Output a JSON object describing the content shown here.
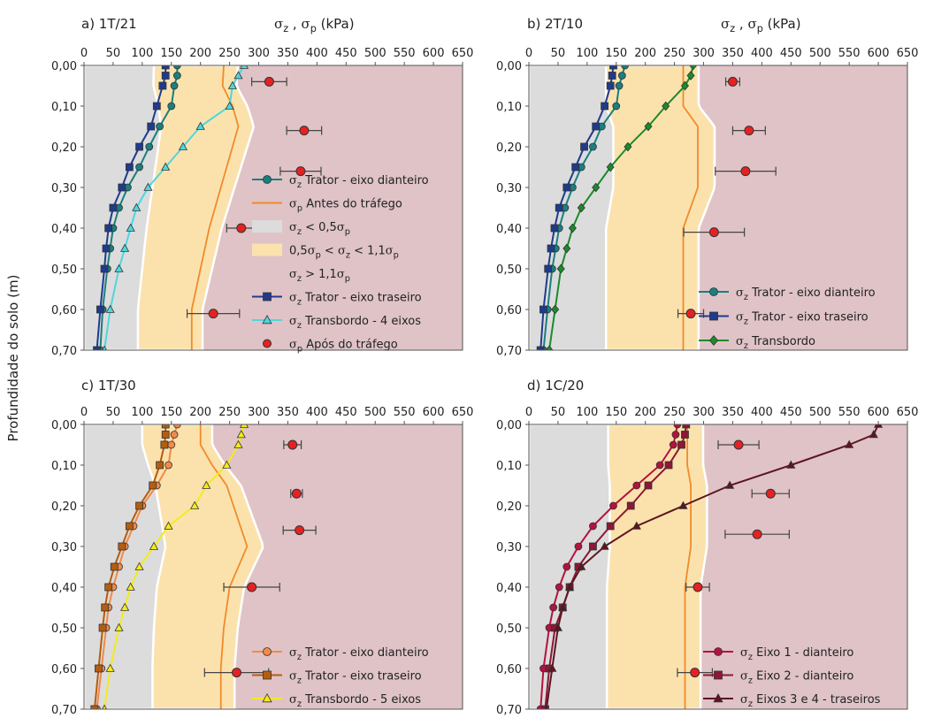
{
  "y_axis_label": "Profundidade do solo (m)",
  "x_axis_label": "σz , σp (kPa)",
  "x_ticks": [
    "0",
    "50",
    "100",
    "150",
    "200",
    "250",
    "300",
    "350",
    "400",
    "450",
    "500",
    "550",
    "600",
    "650"
  ],
  "y_ticks": [
    "0,00",
    "0,10",
    "0,20",
    "0,30",
    "0,40",
    "0,50",
    "0,60",
    "0,70"
  ],
  "colors": {
    "zone_low": "#dcdcdc",
    "zone_mid": "#fbe2ad",
    "zone_high": "#dfc3c7",
    "zone_edge": "#ffffff",
    "sigma_p_line": "#f28a2a",
    "after_traffic_marker": "#e52121"
  },
  "chart_data": [
    {
      "type": "line",
      "panel_title": "a) 1T/21",
      "xlim": [
        0,
        650
      ],
      "ylim": [
        0,
        0.7
      ],
      "y_reversed": true,
      "show_x_label": true,
      "sigma_p_before": {
        "name": "Antes do tráfego",
        "depth": [
          0,
          0.05,
          0.1,
          0.15,
          0.3,
          0.4,
          0.5,
          0.6,
          0.7
        ],
        "value": [
          240,
          238,
          255,
          265,
          235,
          215,
          200,
          185,
          185
        ]
      },
      "series": [
        {
          "name": "Trator - eixo dianteiro",
          "color": "#1a7f7f",
          "marker": "circle",
          "depth": [
            0,
            0.025,
            0.05,
            0.1,
            0.15,
            0.2,
            0.25,
            0.3,
            0.35,
            0.4,
            0.45,
            0.5,
            0.6,
            0.7
          ],
          "value": [
            160,
            160,
            155,
            150,
            130,
            112,
            95,
            75,
            60,
            50,
            45,
            40,
            32,
            28
          ]
        },
        {
          "name": "Trator - eixo traseiro",
          "color": "#1f3b8c",
          "marker": "square",
          "depth": [
            0,
            0.025,
            0.05,
            0.1,
            0.15,
            0.2,
            0.25,
            0.3,
            0.35,
            0.4,
            0.45,
            0.5,
            0.6,
            0.7
          ],
          "value": [
            140,
            140,
            135,
            125,
            115,
            95,
            78,
            65,
            50,
            42,
            38,
            35,
            28,
            22
          ]
        },
        {
          "name": "Transbordo - 4 eixos",
          "color": "#4fd6dc",
          "marker": "triangle",
          "depth": [
            0,
            0.025,
            0.05,
            0.1,
            0.15,
            0.2,
            0.25,
            0.3,
            0.35,
            0.4,
            0.45,
            0.5,
            0.6,
            0.7
          ],
          "value": [
            275,
            265,
            255,
            250,
            200,
            170,
            140,
            110,
            90,
            80,
            70,
            60,
            45,
            35
          ]
        }
      ],
      "after_traffic": {
        "name": "Após do tráfego",
        "depth": [
          0.04,
          0.16,
          0.26,
          0.4,
          0.61
        ],
        "value": [
          318,
          378,
          372,
          270,
          222
        ],
        "err": [
          30,
          30,
          35,
          25,
          45
        ]
      },
      "legend": [
        {
          "kind": "series",
          "ref": 0,
          "prefix": "σz",
          "text": "Trator - eixo dianteiro"
        },
        {
          "kind": "sp_line",
          "prefix": "σp",
          "text": "Antes do tráfego"
        },
        {
          "kind": "zone_low",
          "text": "σz < 0,5σp"
        },
        {
          "kind": "zone_mid",
          "text": "0,5σp < σz < 1,1σp"
        },
        {
          "kind": "zone_high",
          "text": "σz > 1,1σp"
        },
        {
          "kind": "series",
          "ref": 1,
          "prefix": "σz",
          "text": "Trator - eixo traseiro"
        },
        {
          "kind": "series",
          "ref": 2,
          "prefix": "σz",
          "text": "Transbordo - 4 eixos"
        },
        {
          "kind": "after",
          "prefix": "σp",
          "text": "Após do tráfego"
        }
      ]
    },
    {
      "type": "line",
      "panel_title": "b) 2T/10",
      "xlim": [
        0,
        650
      ],
      "ylim": [
        0,
        0.7
      ],
      "y_reversed": true,
      "show_x_label": true,
      "sigma_p_before": {
        "name": "Antes do tráfego",
        "depth": [
          0,
          0.05,
          0.1,
          0.15,
          0.3,
          0.4,
          0.5,
          0.6,
          0.7
        ],
        "value": [
          265,
          265,
          265,
          290,
          290,
          265,
          265,
          265,
          265
        ]
      },
      "series": [
        {
          "name": "Trator - eixo dianteiro",
          "color": "#1a7f7f",
          "marker": "circle",
          "depth": [
            0,
            0.025,
            0.05,
            0.1,
            0.15,
            0.2,
            0.25,
            0.3,
            0.35,
            0.4,
            0.45,
            0.5,
            0.6,
            0.7
          ],
          "value": [
            165,
            160,
            155,
            150,
            125,
            110,
            90,
            75,
            62,
            52,
            46,
            40,
            32,
            25
          ]
        },
        {
          "name": "Trator - eixo traseiro",
          "color": "#1f3b8c",
          "marker": "square",
          "depth": [
            0,
            0.025,
            0.05,
            0.1,
            0.15,
            0.2,
            0.25,
            0.3,
            0.35,
            0.4,
            0.45,
            0.5,
            0.6,
            0.7
          ],
          "value": [
            145,
            143,
            140,
            130,
            115,
            95,
            80,
            65,
            52,
            44,
            38,
            33,
            25,
            20
          ]
        },
        {
          "name": "Transbordo",
          "color": "#1c8a2c",
          "marker": "diamond",
          "depth": [
            0,
            0.025,
            0.05,
            0.1,
            0.15,
            0.2,
            0.25,
            0.3,
            0.35,
            0.4,
            0.45,
            0.5,
            0.6,
            0.7
          ],
          "value": [
            282,
            278,
            268,
            235,
            205,
            170,
            140,
            115,
            90,
            75,
            65,
            55,
            45,
            35
          ]
        }
      ],
      "after_traffic": {
        "name": "Após do tráfego",
        "depth": [
          0.04,
          0.16,
          0.26,
          0.41,
          0.61
        ],
        "value": [
          350,
          378,
          372,
          318,
          278
        ],
        "err": [
          12,
          28,
          52,
          52,
          22
        ]
      },
      "legend": [
        {
          "kind": "series",
          "ref": 0,
          "prefix": "σz",
          "text": "Trator - eixo dianteiro"
        },
        {
          "kind": "series",
          "ref": 1,
          "prefix": "σz",
          "text": "Trator - eixo traseiro"
        },
        {
          "kind": "series",
          "ref": 2,
          "prefix": "σz",
          "text": "Transbordo"
        }
      ]
    },
    {
      "type": "line",
      "panel_title": "c) 1T/30",
      "xlim": [
        0,
        650
      ],
      "ylim": [
        0,
        0.7
      ],
      "y_reversed": true,
      "show_x_label": false,
      "sigma_p_before": {
        "name": "Antes do tráfego",
        "depth": [
          0,
          0.05,
          0.1,
          0.15,
          0.3,
          0.4,
          0.5,
          0.6,
          0.7
        ],
        "value": [
          200,
          200,
          220,
          245,
          280,
          250,
          240,
          235,
          235
        ]
      },
      "series": [
        {
          "name": "Trator - eixo dianteiro",
          "color": "#f08a4a",
          "marker": "circle",
          "depth": [
            0,
            0.025,
            0.05,
            0.1,
            0.15,
            0.2,
            0.25,
            0.3,
            0.35,
            0.4,
            0.45,
            0.5,
            0.6,
            0.7
          ],
          "value": [
            160,
            155,
            150,
            145,
            125,
            100,
            85,
            70,
            60,
            50,
            42,
            38,
            30,
            22
          ]
        },
        {
          "name": "Trator - eixo traseiro",
          "color": "#b45d10",
          "marker": "square",
          "depth": [
            0,
            0.025,
            0.05,
            0.1,
            0.15,
            0.2,
            0.25,
            0.3,
            0.35,
            0.4,
            0.45,
            0.5,
            0.6,
            0.7
          ],
          "value": [
            140,
            140,
            138,
            130,
            118,
            95,
            78,
            65,
            52,
            42,
            36,
            32,
            25,
            18
          ]
        },
        {
          "name": "Transbordo - 5 eixos",
          "color": "#f5ea1c",
          "marker": "triangle",
          "depth": [
            0,
            0.025,
            0.05,
            0.1,
            0.15,
            0.2,
            0.25,
            0.3,
            0.35,
            0.4,
            0.45,
            0.5,
            0.6,
            0.7
          ],
          "value": [
            275,
            270,
            265,
            245,
            210,
            190,
            145,
            120,
            95,
            80,
            70,
            60,
            45,
            35
          ]
        }
      ],
      "after_traffic": {
        "name": "Após do tráfego",
        "depth": [
          0.05,
          0.17,
          0.26,
          0.4,
          0.61
        ],
        "value": [
          358,
          365,
          370,
          288,
          262
        ],
        "err": [
          15,
          10,
          28,
          48,
          55
        ]
      },
      "legend": [
        {
          "kind": "series",
          "ref": 0,
          "prefix": "σz",
          "text": "Trator - eixo dianteiro"
        },
        {
          "kind": "series",
          "ref": 1,
          "prefix": "σz",
          "text": "Trator - eixo traseiro"
        },
        {
          "kind": "series",
          "ref": 2,
          "prefix": "σz",
          "text": "Transbordo - 5 eixos"
        }
      ]
    },
    {
      "type": "line",
      "panel_title": "d) 1C/20",
      "xlim": [
        0,
        650
      ],
      "ylim": [
        0,
        0.7
      ],
      "y_reversed": true,
      "show_x_label": false,
      "sigma_p_before": {
        "name": "Antes do tráfego",
        "depth": [
          0,
          0.05,
          0.1,
          0.15,
          0.3,
          0.4,
          0.5,
          0.6,
          0.7
        ],
        "value": [
          272,
          272,
          272,
          278,
          278,
          268,
          268,
          268,
          268
        ]
      },
      "series": [
        {
          "name": "Eixo 1 - dianteiro",
          "color": "#b5123e",
          "marker": "circle",
          "depth": [
            0,
            0.025,
            0.05,
            0.1,
            0.15,
            0.2,
            0.25,
            0.3,
            0.35,
            0.4,
            0.45,
            0.5,
            0.6,
            0.7
          ],
          "value": [
            255,
            252,
            248,
            225,
            185,
            145,
            110,
            85,
            65,
            52,
            42,
            35,
            25,
            20
          ]
        },
        {
          "name": "Eixo 2 - dianteiro",
          "color": "#8c1736",
          "marker": "square",
          "depth": [
            0,
            0.025,
            0.05,
            0.1,
            0.15,
            0.2,
            0.25,
            0.3,
            0.35,
            0.4,
            0.45,
            0.5,
            0.6,
            0.7
          ],
          "value": [
            270,
            268,
            262,
            240,
            205,
            175,
            140,
            110,
            85,
            70,
            58,
            45,
            35,
            28
          ]
        },
        {
          "name": "Eixos 3 e 4 - traseiros",
          "color": "#5e1520",
          "marker": "triangle",
          "depth": [
            0,
            0.025,
            0.05,
            0.1,
            0.15,
            0.2,
            0.25,
            0.3,
            0.35,
            0.4,
            0.45,
            0.5,
            0.6,
            0.7
          ],
          "value": [
            600,
            592,
            550,
            450,
            345,
            265,
            185,
            130,
            90,
            70,
            58,
            50,
            40,
            30
          ]
        }
      ],
      "after_traffic": {
        "name": "Após do tráfego",
        "depth": [
          0.05,
          0.17,
          0.27,
          0.4,
          0.61
        ],
        "value": [
          360,
          415,
          392,
          290,
          285
        ],
        "err": [
          35,
          32,
          55,
          20,
          30
        ]
      },
      "legend": [
        {
          "kind": "series",
          "ref": 0,
          "prefix": "σz",
          "text": "Eixo 1 - dianteiro"
        },
        {
          "kind": "series",
          "ref": 1,
          "prefix": "σz",
          "text": "Eixo 2 - dianteiro"
        },
        {
          "kind": "series",
          "ref": 2,
          "prefix": "σz",
          "text": "Eixos 3 e 4 - traseiros"
        }
      ]
    }
  ]
}
